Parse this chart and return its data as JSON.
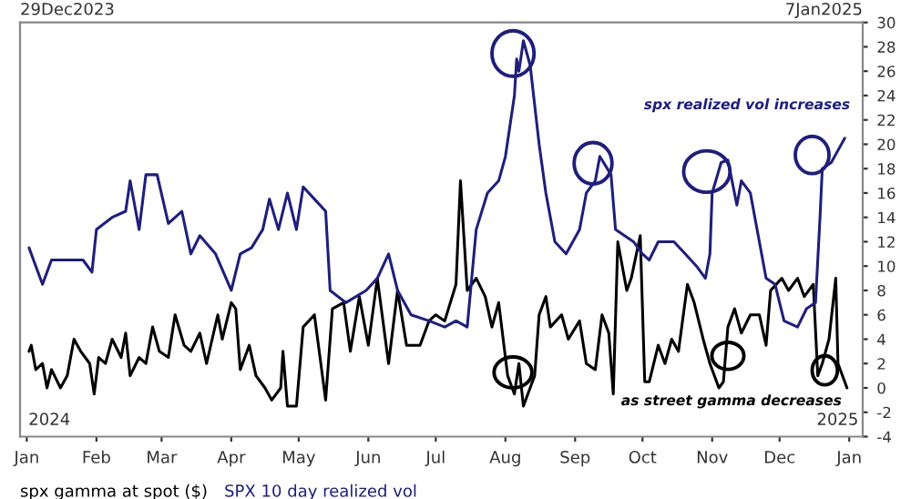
{
  "chart_data": {
    "type": "line",
    "legend": "bottom",
    "grid": false,
    "marker": "none",
    "line_style": "solid",
    "xlim": [
      "2023-12-29",
      "2025-01-07"
    ],
    "xticks": [
      {
        "value": "2024-01-01",
        "label": "Jan"
      },
      {
        "value": "2024-02-01",
        "label": "Feb"
      },
      {
        "value": "2024-03-01",
        "label": "Mar"
      },
      {
        "value": "2024-04-01",
        "label": "Apr"
      },
      {
        "value": "2024-05-01",
        "label": "May"
      },
      {
        "value": "2024-06-01",
        "label": "Jun"
      },
      {
        "value": "2024-07-01",
        "label": "Jul"
      },
      {
        "value": "2024-08-01",
        "label": "Aug"
      },
      {
        "value": "2024-09-01",
        "label": "Sep"
      },
      {
        "value": "2024-10-01",
        "label": "Oct"
      },
      {
        "value": "2024-11-01",
        "label": "Nov"
      },
      {
        "value": "2024-12-01",
        "label": "Dec"
      },
      {
        "value": "2025-01-01",
        "label": "Jan"
      }
    ],
    "ylim": [
      -4,
      30
    ],
    "yticks": [
      -4,
      -2,
      0,
      2,
      4,
      6,
      8,
      10,
      12,
      14,
      16,
      18,
      20,
      22,
      24,
      26,
      28,
      30
    ],
    "annotations": [
      "29Dec2023",
      "7Jan2025",
      "2024",
      "2025",
      "spx realized vol increases",
      "as street gamma decreases"
    ],
    "series": [
      {
        "name": "spx gamma at spot ($)",
        "color": "#000000",
        "x": [
          "2024-01-02",
          "2024-01-03",
          "2024-01-05",
          "2024-01-08",
          "2024-01-10",
          "2024-01-12",
          "2024-01-16",
          "2024-01-19",
          "2024-01-22",
          "2024-01-25",
          "2024-01-29",
          "2024-01-31",
          "2024-02-02",
          "2024-02-05",
          "2024-02-08",
          "2024-02-12",
          "2024-02-14",
          "2024-02-16",
          "2024-02-20",
          "2024-02-23",
          "2024-02-26",
          "2024-02-29",
          "2024-03-04",
          "2024-03-07",
          "2024-03-11",
          "2024-03-14",
          "2024-03-18",
          "2024-03-21",
          "2024-03-26",
          "2024-03-28",
          "2024-04-01",
          "2024-04-03",
          "2024-04-05",
          "2024-04-09",
          "2024-04-12",
          "2024-04-16",
          "2024-04-19",
          "2024-04-23",
          "2024-04-24",
          "2024-04-26",
          "2024-04-30",
          "2024-05-03",
          "2024-05-08",
          "2024-05-13",
          "2024-05-16",
          "2024-05-21",
          "2024-05-24",
          "2024-05-28",
          "2024-06-01",
          "2024-06-05",
          "2024-06-10",
          "2024-06-14",
          "2024-06-18",
          "2024-06-24",
          "2024-06-28",
          "2024-07-01",
          "2024-07-05",
          "2024-07-10",
          "2024-07-12",
          "2024-07-15",
          "2024-07-19",
          "2024-07-23",
          "2024-07-26",
          "2024-07-29",
          "2024-08-02",
          "2024-08-05",
          "2024-08-07",
          "2024-08-09",
          "2024-08-12",
          "2024-08-14",
          "2024-08-16",
          "2024-08-19",
          "2024-08-21",
          "2024-08-26",
          "2024-08-29",
          "2024-09-03",
          "2024-09-06",
          "2024-09-10",
          "2024-09-13",
          "2024-09-16",
          "2024-09-18",
          "2024-09-20",
          "2024-09-24",
          "2024-09-26",
          "2024-09-30",
          "2024-10-02",
          "2024-10-04",
          "2024-10-08",
          "2024-10-11",
          "2024-10-14",
          "2024-10-17",
          "2024-10-21",
          "2024-10-24",
          "2024-10-28",
          "2024-10-31",
          "2024-11-04",
          "2024-11-06",
          "2024-11-08",
          "2024-11-11",
          "2024-11-14",
          "2024-11-18",
          "2024-11-22",
          "2024-11-25",
          "2024-11-27",
          "2024-12-02",
          "2024-12-05",
          "2024-12-09",
          "2024-12-12",
          "2024-12-16",
          "2024-12-18",
          "2024-12-20",
          "2024-12-23",
          "2024-12-26",
          "2024-12-27",
          "2024-12-31"
        ],
        "values": [
          3,
          3.5,
          1.5,
          2,
          0,
          1.5,
          0,
          1,
          4,
          3,
          2,
          -0.5,
          2.5,
          2,
          4,
          2.5,
          4.5,
          1,
          2.5,
          2,
          5,
          3,
          2.5,
          6,
          3.5,
          3,
          4.5,
          2,
          6,
          4,
          7,
          6.5,
          1.5,
          3.5,
          1,
          0,
          -1,
          0,
          3,
          -1.5,
          -1.5,
          5,
          6,
          -1,
          6.5,
          7,
          3,
          7.5,
          3.5,
          9,
          2,
          8,
          3.5,
          3.5,
          5.5,
          6,
          5.5,
          8.5,
          17,
          8,
          9,
          7.5,
          5,
          7,
          1,
          -0.5,
          2,
          -1.5,
          0,
          1,
          6,
          7.5,
          5,
          6,
          4,
          5.5,
          2,
          1.5,
          6,
          4.5,
          -0.5,
          12,
          8,
          9,
          12.5,
          0.5,
          0.5,
          3.5,
          2,
          4,
          3,
          8.5,
          7,
          4,
          2,
          0,
          0.5,
          5,
          6.5,
          4.5,
          6,
          6,
          3.5,
          8,
          9,
          8,
          9,
          7.5,
          8.5,
          1,
          2,
          4,
          9,
          2,
          0
        ]
      },
      {
        "name": "SPX 10 day realized vol",
        "color": "#1f1f7a",
        "x": [
          "2024-01-02",
          "2024-01-05",
          "2024-01-08",
          "2024-01-12",
          "2024-01-19",
          "2024-01-26",
          "2024-01-30",
          "2024-02-01",
          "2024-02-08",
          "2024-02-14",
          "2024-02-16",
          "2024-02-20",
          "2024-02-23",
          "2024-02-28",
          "2024-03-04",
          "2024-03-10",
          "2024-03-14",
          "2024-03-18",
          "2024-03-25",
          "2024-04-01",
          "2024-04-05",
          "2024-04-10",
          "2024-04-15",
          "2024-04-18",
          "2024-04-22",
          "2024-04-26",
          "2024-04-30",
          "2024-05-03",
          "2024-05-08",
          "2024-05-13",
          "2024-05-15",
          "2024-05-22",
          "2024-05-31",
          "2024-06-05",
          "2024-06-10",
          "2024-06-14",
          "2024-06-20",
          "2024-06-28",
          "2024-07-05",
          "2024-07-10",
          "2024-07-15",
          "2024-07-17",
          "2024-07-19",
          "2024-07-24",
          "2024-07-29",
          "2024-08-01",
          "2024-08-05",
          "2024-08-06",
          "2024-08-07",
          "2024-08-09",
          "2024-08-12",
          "2024-08-16",
          "2024-08-19",
          "2024-08-23",
          "2024-08-28",
          "2024-09-03",
          "2024-09-06",
          "2024-09-10",
          "2024-09-12",
          "2024-09-17",
          "2024-09-19",
          "2024-09-23",
          "2024-09-27",
          "2024-10-01",
          "2024-10-04",
          "2024-10-08",
          "2024-10-15",
          "2024-10-20",
          "2024-10-25",
          "2024-10-29",
          "2024-10-31",
          "2024-11-01",
          "2024-11-05",
          "2024-11-08",
          "2024-11-12",
          "2024-11-14",
          "2024-11-18",
          "2024-11-22",
          "2024-11-25",
          "2024-11-29",
          "2024-12-03",
          "2024-12-09",
          "2024-12-13",
          "2024-12-17",
          "2024-12-19",
          "2024-12-20",
          "2024-12-24",
          "2024-12-27",
          "2024-12-30"
        ],
        "values": [
          11.5,
          10,
          8.5,
          10.5,
          10.5,
          10.5,
          9.5,
          13,
          14,
          14.5,
          17,
          13,
          17.5,
          17.5,
          13.5,
          14.5,
          11,
          12.5,
          11,
          8,
          11,
          11.5,
          13,
          15.5,
          13,
          16,
          13,
          16.5,
          15.5,
          14.5,
          8,
          7,
          8,
          9,
          11,
          8,
          6,
          5.5,
          5,
          5.5,
          5,
          9,
          13,
          16,
          17,
          19,
          24,
          27,
          26,
          28.5,
          26.5,
          20,
          16,
          12,
          11,
          13,
          16,
          17,
          19,
          17.5,
          13,
          12.5,
          12,
          11,
          10.5,
          12,
          12,
          11,
          10,
          9,
          11,
          16,
          18.5,
          18.7,
          15,
          17,
          16,
          12,
          9,
          8.5,
          5.5,
          5,
          6.5,
          7,
          14,
          18,
          18.5,
          19.5,
          20.5
        ]
      }
    ]
  }
}
